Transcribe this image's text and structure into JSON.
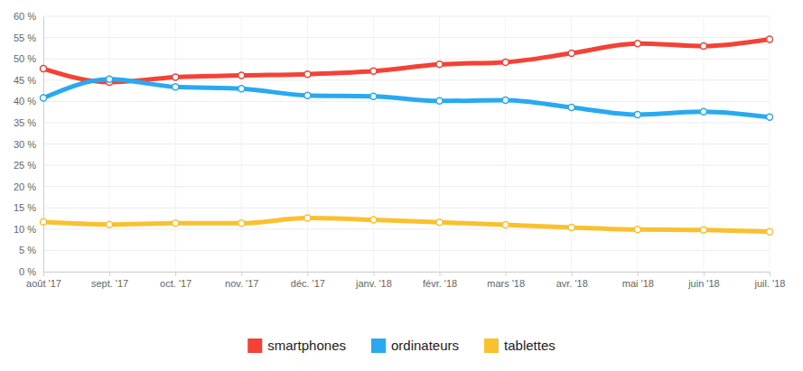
{
  "chart_data": {
    "type": "line",
    "categories": [
      "août '17",
      "sept. '17",
      "oct. '17",
      "nov. '17",
      "déc. '17",
      "janv. '18",
      "févr. '18",
      "mars '18",
      "avr. '18",
      "mai '18",
      "juin '18",
      "juil. '18"
    ],
    "series": [
      {
        "name": "smartphones",
        "color": "#f44336",
        "values": [
          47.7,
          44.5,
          45.7,
          46.1,
          46.4,
          47.1,
          48.7,
          49.2,
          51.3,
          53.6,
          53.0,
          54.6
        ]
      },
      {
        "name": "ordinateurs",
        "color": "#29aaf0",
        "values": [
          40.8,
          45.2,
          43.4,
          43.0,
          41.4,
          41.2,
          40.1,
          40.3,
          38.6,
          36.9,
          37.6,
          36.3
        ]
      },
      {
        "name": "tablettes",
        "color": "#fbc02d",
        "values": [
          11.7,
          11.1,
          11.4,
          11.4,
          12.6,
          12.2,
          11.6,
          11.0,
          10.4,
          9.9,
          9.8,
          9.4
        ]
      }
    ],
    "ylim": [
      0,
      60
    ],
    "yticks": [
      {
        "value": 0,
        "label": "0 %"
      },
      {
        "value": 5,
        "label": "5 %"
      },
      {
        "value": 10,
        "label": "10 %"
      },
      {
        "value": 15,
        "label": "15 %"
      },
      {
        "value": 20,
        "label": "20 %"
      },
      {
        "value": 25,
        "label": "25 %"
      },
      {
        "value": 30,
        "label": "30 %"
      },
      {
        "value": 35,
        "label": "35 %"
      },
      {
        "value": 40,
        "label": "40 %"
      },
      {
        "value": 45,
        "label": "45 %"
      },
      {
        "value": 50,
        "label": "50 %"
      },
      {
        "value": 55,
        "label": "55 %"
      },
      {
        "value": 60,
        "label": "60 %"
      }
    ],
    "grid": true,
    "legend": "bottom",
    "marker": "circle",
    "line_style": "solid"
  }
}
